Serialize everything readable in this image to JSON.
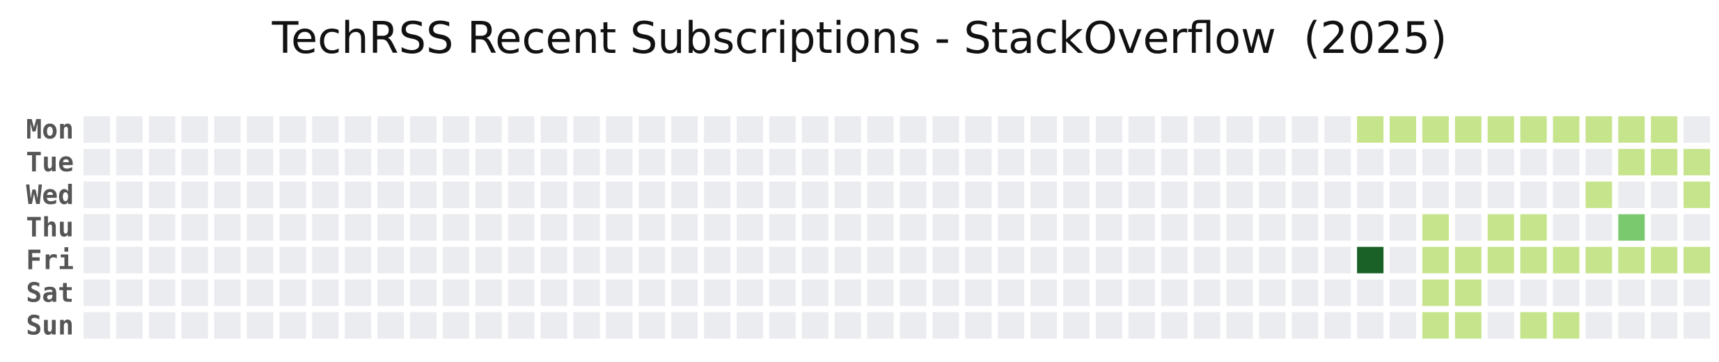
{
  "chart_data": {
    "type": "heatmap",
    "title": "TechRSS Recent Subscriptions - StackOverflow  (2025)",
    "rows": [
      "Mon",
      "Tue",
      "Wed",
      "Thu",
      "Fri",
      "Sat",
      "Sun"
    ],
    "num_weeks": 50,
    "colors": {
      "empty": "#ebecf0",
      "level1": "#c6e48b",
      "level2": "#7bc96f",
      "level4": "#196127"
    },
    "cells": [
      {
        "week": 39,
        "day": 4,
        "level": 4
      },
      {
        "week": 39,
        "day": 0,
        "level": 1
      },
      {
        "week": 40,
        "day": 0,
        "level": 1
      },
      {
        "week": 41,
        "day": 0,
        "level": 1
      },
      {
        "week": 41,
        "day": 3,
        "level": 1
      },
      {
        "week": 41,
        "day": 4,
        "level": 1
      },
      {
        "week": 41,
        "day": 5,
        "level": 1
      },
      {
        "week": 41,
        "day": 6,
        "level": 1
      },
      {
        "week": 42,
        "day": 0,
        "level": 1
      },
      {
        "week": 42,
        "day": 4,
        "level": 1
      },
      {
        "week": 42,
        "day": 5,
        "level": 1
      },
      {
        "week": 42,
        "day": 6,
        "level": 1
      },
      {
        "week": 43,
        "day": 0,
        "level": 1
      },
      {
        "week": 43,
        "day": 3,
        "level": 1
      },
      {
        "week": 43,
        "day": 4,
        "level": 1
      },
      {
        "week": 44,
        "day": 0,
        "level": 1
      },
      {
        "week": 44,
        "day": 3,
        "level": 1
      },
      {
        "week": 44,
        "day": 4,
        "level": 1
      },
      {
        "week": 44,
        "day": 6,
        "level": 1
      },
      {
        "week": 45,
        "day": 0,
        "level": 1
      },
      {
        "week": 45,
        "day": 4,
        "level": 1
      },
      {
        "week": 45,
        "day": 6,
        "level": 1
      },
      {
        "week": 46,
        "day": 0,
        "level": 1
      },
      {
        "week": 46,
        "day": 2,
        "level": 1
      },
      {
        "week": 46,
        "day": 4,
        "level": 1
      },
      {
        "week": 47,
        "day": 0,
        "level": 1
      },
      {
        "week": 47,
        "day": 1,
        "level": 1
      },
      {
        "week": 47,
        "day": 3,
        "level": 2
      },
      {
        "week": 47,
        "day": 4,
        "level": 1
      },
      {
        "week": 48,
        "day": 0,
        "level": 1
      },
      {
        "week": 48,
        "day": 1,
        "level": 1
      },
      {
        "week": 48,
        "day": 4,
        "level": 1
      },
      {
        "week": 49,
        "day": 1,
        "level": 1
      },
      {
        "week": 49,
        "day": 2,
        "level": 1
      },
      {
        "week": 49,
        "day": 4,
        "level": 1
      }
    ]
  }
}
